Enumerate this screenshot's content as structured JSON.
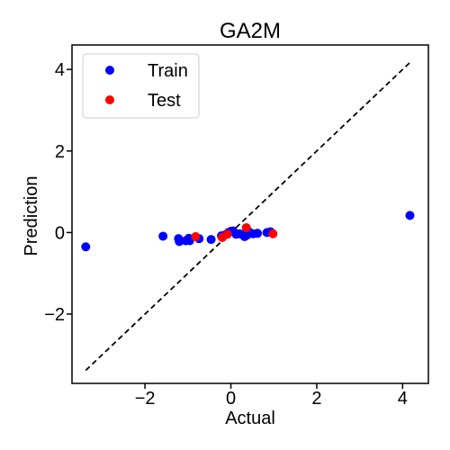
{
  "chart_data": {
    "type": "scatter",
    "title": "GA2M",
    "xlabel": "Actual",
    "ylabel": "Prediction",
    "xlim": [
      -3.7,
      4.6
    ],
    "ylim": [
      -3.7,
      4.6
    ],
    "xticks": [
      -2,
      0,
      2,
      4
    ],
    "yticks": [
      -2,
      0,
      2,
      4
    ],
    "xtick_labels": [
      "−2",
      "0",
      "2",
      "4"
    ],
    "ytick_labels": [
      "−2",
      "0",
      "2",
      "4"
    ],
    "grid": false,
    "legend": "top-left",
    "reference_line": {
      "style": "dashed",
      "color": "#000000",
      "from": [
        -3.38,
        -3.38
      ],
      "to": [
        4.17,
        4.17
      ]
    },
    "series": [
      {
        "name": "Train",
        "color": "#0000ff",
        "points": [
          [
            -3.38,
            -0.35
          ],
          [
            -1.58,
            -0.09
          ],
          [
            -1.22,
            -0.15
          ],
          [
            -1.2,
            -0.22
          ],
          [
            -1.05,
            -0.2
          ],
          [
            -0.98,
            -0.14
          ],
          [
            -0.96,
            -0.2
          ],
          [
            -0.74,
            -0.15
          ],
          [
            -0.46,
            -0.17
          ],
          [
            -0.22,
            -0.08
          ],
          [
            -0.12,
            -0.05
          ],
          [
            -0.06,
            0.0
          ],
          [
            0.0,
            0.03
          ],
          [
            0.05,
            0.04
          ],
          [
            0.12,
            -0.04
          ],
          [
            0.2,
            -0.03
          ],
          [
            0.26,
            -0.05
          ],
          [
            0.32,
            -0.1
          ],
          [
            0.38,
            -0.06
          ],
          [
            0.42,
            0.02
          ],
          [
            0.52,
            -0.03
          ],
          [
            0.62,
            -0.02
          ],
          [
            0.84,
            0.0
          ],
          [
            0.92,
            0.02
          ],
          [
            4.17,
            0.42
          ]
        ]
      },
      {
        "name": "Test",
        "color": "#ff0000",
        "points": [
          [
            -0.82,
            -0.1
          ],
          [
            -0.2,
            -0.12
          ],
          [
            -0.08,
            -0.04
          ],
          [
            0.36,
            0.12
          ],
          [
            0.98,
            -0.03
          ]
        ]
      }
    ]
  }
}
